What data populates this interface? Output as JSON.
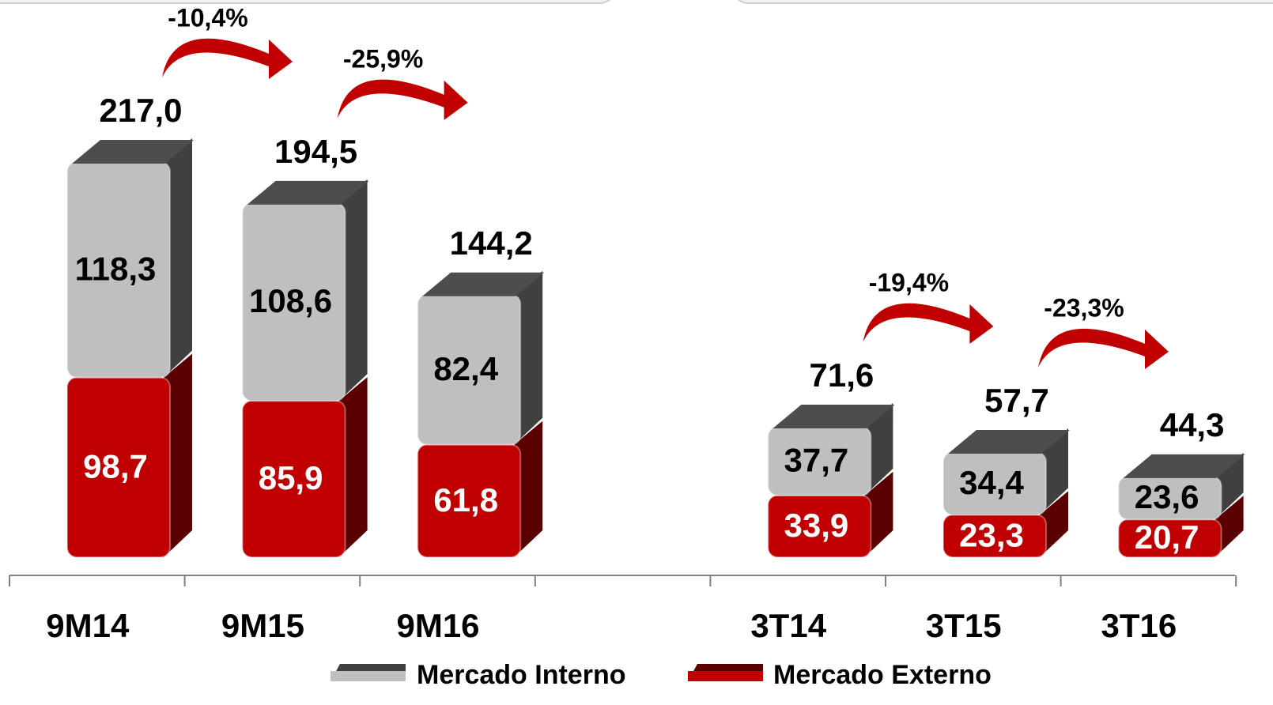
{
  "chart_data": {
    "type": "bar",
    "stacked": true,
    "categories": [
      "9M14",
      "9M15",
      "9M16",
      null,
      "3T14",
      "3T15",
      "3T16"
    ],
    "series": [
      {
        "name": "Mercado Externo",
        "color": "#c00000",
        "side_color": "#5a0000",
        "label_color": "#ffffff",
        "values": [
          98.7,
          85.9,
          61.8,
          null,
          33.9,
          23.3,
          20.7
        ],
        "value_labels": [
          "98,7",
          "85,9",
          "61,8",
          null,
          "33,9",
          "23,3",
          "20,7"
        ]
      },
      {
        "name": "Mercado Interno",
        "color": "#bfbfbf",
        "side_color": "#404040",
        "label_color": "#000000",
        "values": [
          118.3,
          108.6,
          82.4,
          null,
          37.7,
          34.4,
          23.6
        ],
        "value_labels": [
          "118,3",
          "108,6",
          "82,4",
          null,
          "37,7",
          "34,4",
          "23,6"
        ]
      }
    ],
    "totals": {
      "values": [
        217.0,
        194.5,
        144.2,
        null,
        71.6,
        57.7,
        44.3
      ],
      "value_labels": [
        "217,0",
        "194,5",
        "144,2",
        null,
        "71,6",
        "57,7",
        "44,3"
      ]
    },
    "annotations": [
      "-10,4%",
      "-25,9%",
      "-19,4%",
      "-23,3%"
    ]
  }
}
